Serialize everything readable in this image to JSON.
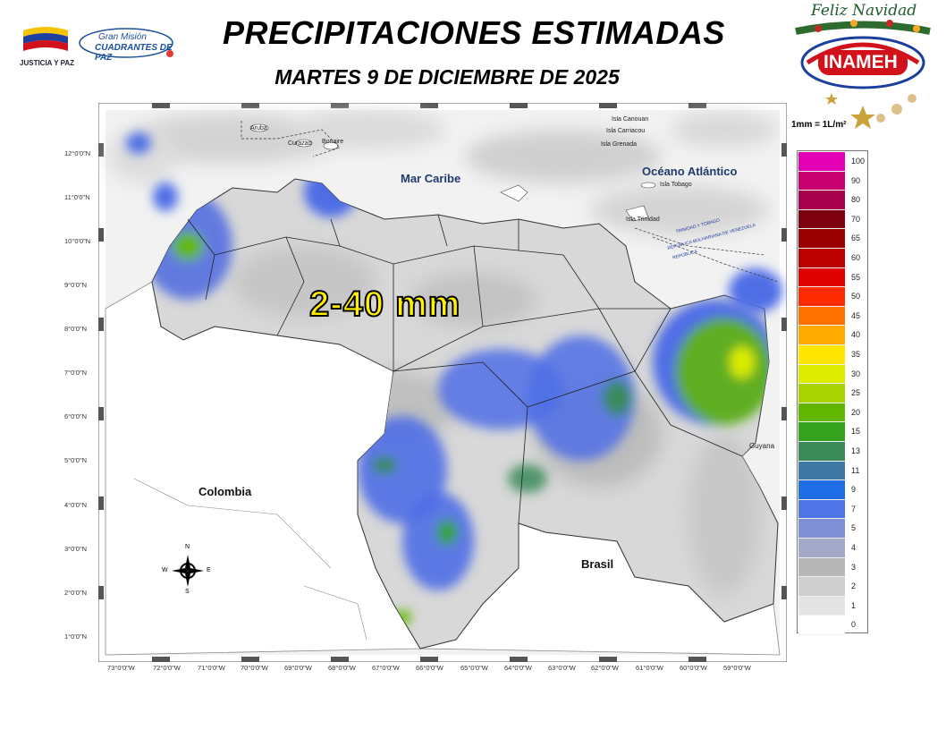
{
  "header": {
    "title": "PRECIPITACIONES ESTIMADAS",
    "subtitle": "MARTES 9 DE DICIEMBRE DE 2025"
  },
  "logos": {
    "justicia": "JUSTICIA Y PAZ",
    "gran_mision_line1": "Gran Misión",
    "gran_mision_line2": "CUADRANTES DE PAZ",
    "feliz": "Feliz Navidad",
    "inameh": "INAMEH"
  },
  "map": {
    "amount_label": "2-40 mm",
    "unit_note": "1mm = 1L/m²",
    "labels": {
      "colombia": "Colombia",
      "brasil": "Brasil",
      "guyana": "Guyana",
      "mar_caribe": "Mar Caribe",
      "oceano": "Océano Atlántico",
      "aruba": "Aruba",
      "curazao": "Curazao",
      "bonaire": "Bonaire",
      "canouan": "Isla Canouan",
      "carriacou": "Isla Carriacou",
      "grenada": "Isla Grenada",
      "tobago": "Isla Tobago",
      "trinidad": "Isla Trinidad",
      "tyt": "TRINIDAD Y TOBAGO",
      "rbv": "REPÚBLICA BOLIVARIANA DE VENEZUELA",
      "republica": "REPÚBLICA"
    },
    "compass": {
      "n": "N",
      "s": "S",
      "e": "E",
      "w": "W"
    },
    "lat_ticks": [
      "12°0'0\"N",
      "11°0'0\"N",
      "10°0'0\"N",
      "9°0'0\"N",
      "8°0'0\"N",
      "7°0'0\"N",
      "6°0'0\"N",
      "5°0'0\"N",
      "4°0'0\"N",
      "3°0'0\"N",
      "2°0'0\"N",
      "1°0'0\"N"
    ],
    "lon_ticks": [
      "73°0'0\"W",
      "72°0'0\"W",
      "71°0'0\"W",
      "70°0'0\"W",
      "69°0'0\"W",
      "68°0'0\"W",
      "67°0'0\"W",
      "66°0'0\"W",
      "65°0'0\"W",
      "64°0'0\"W",
      "63°0'0\"W",
      "62°0'0\"W",
      "61°0'0\"W",
      "60°0'0\"W",
      "59°0'0\"W"
    ]
  },
  "legend": {
    "classes": [
      {
        "label": "100",
        "color": "#e300b4"
      },
      {
        "label": "90",
        "color": "#c8006e"
      },
      {
        "label": "80",
        "color": "#a8004a"
      },
      {
        "label": "70",
        "color": "#7e0010"
      },
      {
        "label": "65",
        "color": "#9a0000"
      },
      {
        "label": "60",
        "color": "#bb0000"
      },
      {
        "label": "55",
        "color": "#e00000"
      },
      {
        "label": "50",
        "color": "#ff2a00"
      },
      {
        "label": "45",
        "color": "#ff7200"
      },
      {
        "label": "40",
        "color": "#ffaa00"
      },
      {
        "label": "35",
        "color": "#ffe500"
      },
      {
        "label": "30",
        "color": "#dcec00"
      },
      {
        "label": "25",
        "color": "#a8d200"
      },
      {
        "label": "20",
        "color": "#62b800"
      },
      {
        "label": "15",
        "color": "#35a31e"
      },
      {
        "label": "13",
        "color": "#3a8a5a"
      },
      {
        "label": "11",
        "color": "#3f78a2"
      },
      {
        "label": "9",
        "color": "#1f6ee6"
      },
      {
        "label": "7",
        "color": "#4f74e6"
      },
      {
        "label": "5",
        "color": "#7f8fd6"
      },
      {
        "label": "4",
        "color": "#a5a9c9"
      },
      {
        "label": "3",
        "color": "#b7b7b7"
      },
      {
        "label": "2",
        "color": "#cfcfcf"
      },
      {
        "label": "1",
        "color": "#e4e4e4"
      },
      {
        "label": "0",
        "color": "#ffffff"
      }
    ]
  }
}
